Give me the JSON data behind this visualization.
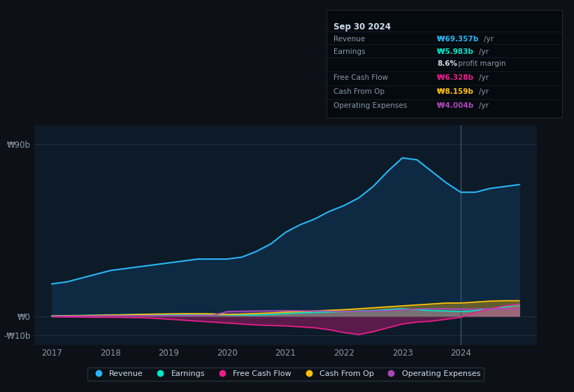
{
  "background_color": "#0d1117",
  "chart_bg_color": "#0d1a27",
  "revenue_color": "#29b6f6",
  "earnings_color": "#00e5cc",
  "fcf_color": "#e91e8c",
  "cashop_color": "#ffc107",
  "opex_color": "#ab47bc",
  "revenue_fill": "#0d2a42",
  "grid_color": "#2a3a4a",
  "text_color": "#8899aa",
  "bright_text": "#ccddee",
  "legend_labels": [
    "Revenue",
    "Earnings",
    "Free Cash Flow",
    "Cash From Op",
    "Operating Expenses"
  ],
  "legend_colors": [
    "#29b6f6",
    "#00e5cc",
    "#e91e8c",
    "#ffc107",
    "#ab47bc"
  ],
  "info_box": {
    "date": "Sep 30 2024",
    "revenue_label": "Revenue",
    "revenue_val": "₩69.357b /yr",
    "earnings_label": "Earnings",
    "earnings_val": "₩5.983b /yr",
    "profit_margin": "8.6% profit margin",
    "fcf_label": "Free Cash Flow",
    "fcf_val": "₩6.328b /yr",
    "cashop_label": "Cash From Op",
    "cashop_val": "₩8.159b /yr",
    "opex_label": "Operating Expenses",
    "opex_val": "₩4.004b /yr"
  },
  "x_data": [
    2017.0,
    2017.25,
    2017.5,
    2017.75,
    2018.0,
    2018.25,
    2018.5,
    2018.75,
    2019.0,
    2019.25,
    2019.5,
    2019.75,
    2020.0,
    2020.25,
    2020.5,
    2020.75,
    2021.0,
    2021.25,
    2021.5,
    2021.75,
    2022.0,
    2022.25,
    2022.5,
    2022.75,
    2023.0,
    2023.25,
    2023.5,
    2023.75,
    2024.0,
    2024.25,
    2024.5,
    2024.75,
    2025.0
  ],
  "revenue": [
    17,
    18,
    20,
    22,
    24,
    25,
    26,
    27,
    28,
    29,
    30,
    30,
    30,
    31,
    34,
    38,
    44,
    48,
    51,
    55,
    58,
    62,
    68,
    76,
    83,
    82,
    76,
    70,
    65,
    65,
    67,
    68,
    69
  ],
  "earnings": [
    0.3,
    0.4,
    0.5,
    0.6,
    0.8,
    0.9,
    1.0,
    1.1,
    1.0,
    1.1,
    1.2,
    1.2,
    0.8,
    0.7,
    0.8,
    1.0,
    1.5,
    1.8,
    2.0,
    2.3,
    2.5,
    2.8,
    3.0,
    3.5,
    4.0,
    3.5,
    3.0,
    2.8,
    2.5,
    3.0,
    4.0,
    5.0,
    6.0
  ],
  "free_cash_flow": [
    -0.2,
    -0.3,
    -0.4,
    -0.5,
    -0.5,
    -0.6,
    -0.7,
    -1.0,
    -1.5,
    -2.0,
    -2.5,
    -3.0,
    -3.5,
    -4.0,
    -4.5,
    -4.8,
    -5.0,
    -5.5,
    -6.0,
    -7.0,
    -8.5,
    -9.5,
    -8.0,
    -6.0,
    -4.0,
    -3.0,
    -2.5,
    -1.5,
    -0.5,
    2.0,
    4.0,
    5.5,
    6.3
  ],
  "cash_from_op": [
    0.2,
    0.3,
    0.4,
    0.5,
    0.7,
    0.8,
    1.0,
    1.2,
    1.3,
    1.4,
    1.4,
    1.3,
    1.0,
    1.2,
    1.5,
    1.8,
    2.2,
    2.5,
    2.8,
    3.2,
    3.5,
    4.0,
    4.5,
    5.0,
    5.5,
    6.0,
    6.5,
    7.0,
    7.0,
    7.5,
    8.0,
    8.2,
    8.2
  ],
  "operating_expenses": [
    0.1,
    0.1,
    0.2,
    0.2,
    0.3,
    0.3,
    0.4,
    0.4,
    0.4,
    0.4,
    0.5,
    0.5,
    2.5,
    2.7,
    2.8,
    2.9,
    3.0,
    2.9,
    2.8,
    2.7,
    2.5,
    2.6,
    2.8,
    3.0,
    3.5,
    3.8,
    4.0,
    4.0,
    3.8,
    3.9,
    4.0,
    4.0,
    4.0
  ],
  "ylim": [
    -15,
    100
  ],
  "xlim": [
    2016.7,
    2025.3
  ],
  "yticks": [
    -10,
    0,
    90
  ],
  "ytick_labels": [
    "-₩10b",
    "₩0",
    "₩90b"
  ],
  "xticks": [
    2017,
    2018,
    2019,
    2020,
    2021,
    2022,
    2023,
    2024
  ],
  "vline_x": 2024.0
}
